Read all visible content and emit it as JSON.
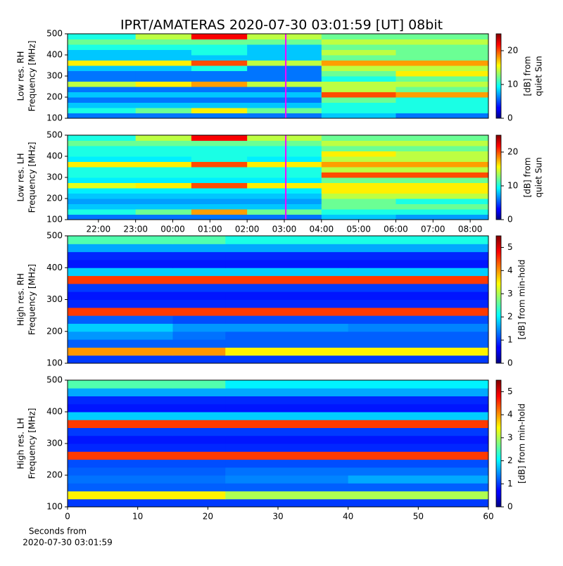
{
  "title": "IPRT/AMATERAS 2020-07-30 03:01:59 [UT]   08bit",
  "chart_data": [
    {
      "type": "heatmap",
      "ylabel": [
        "Low res. RH",
        "Frequency [MHz]"
      ],
      "xlim": [
        21.17,
        32.49
      ],
      "ylim": [
        100,
        500
      ],
      "yticks": [
        100,
        200,
        300,
        400,
        500
      ],
      "x_edges": [
        21.17,
        23,
        24.5,
        26,
        28,
        30,
        32.49
      ],
      "y_edges": [
        100,
        125,
        150,
        175,
        200,
        225,
        250,
        275,
        300,
        325,
        350,
        375,
        400,
        425,
        450,
        475,
        500
      ],
      "values": [
        [
          6,
          6,
          6,
          6,
          8,
          6
        ],
        [
          10,
          12,
          16,
          12,
          10,
          10
        ],
        [
          8,
          8,
          8,
          8,
          10,
          10
        ],
        [
          6,
          6,
          6,
          6,
          12,
          10
        ],
        [
          8,
          8,
          8,
          8,
          20,
          18
        ],
        [
          6,
          6,
          6,
          6,
          14,
          12
        ],
        [
          14,
          16,
          18,
          14,
          14,
          14
        ],
        [
          6,
          6,
          6,
          6,
          10,
          12
        ],
        [
          6,
          6,
          6,
          6,
          12,
          16
        ],
        [
          8,
          8,
          10,
          6,
          14,
          14
        ],
        [
          16,
          16,
          20,
          14,
          18,
          18
        ],
        [
          8,
          8,
          8,
          8,
          12,
          12
        ],
        [
          8,
          8,
          10,
          8,
          14,
          12
        ],
        [
          10,
          10,
          10,
          8,
          12,
          12
        ],
        [
          12,
          12,
          12,
          12,
          14,
          14
        ],
        [
          10,
          14,
          22,
          14,
          12,
          12
        ]
      ],
      "clim": [
        0,
        25
      ],
      "cticks": [
        0,
        10,
        20
      ],
      "colorbar_label": [
        "[dB] from",
        "quiet Sun"
      ],
      "vline": {
        "x": 27.04,
        "color": "#ff00ff"
      }
    },
    {
      "type": "heatmap",
      "ylabel": [
        "Low res. LH",
        "Frequency [MHz]"
      ],
      "xlim": [
        21.17,
        32.49
      ],
      "ylim": [
        100,
        500
      ],
      "yticks": [
        100,
        200,
        300,
        400,
        500
      ],
      "xticks": [
        {
          "value": 22,
          "label": "22:00"
        },
        {
          "value": 23,
          "label": "23:00"
        },
        {
          "value": 24,
          "label": "00:00"
        },
        {
          "value": 25,
          "label": "01:00"
        },
        {
          "value": 26,
          "label": "02:00"
        },
        {
          "value": 27,
          "label": "03:00"
        },
        {
          "value": 28,
          "label": "04:00"
        },
        {
          "value": 29,
          "label": "05:00"
        },
        {
          "value": 30,
          "label": "06:00"
        },
        {
          "value": 31,
          "label": "07:00"
        },
        {
          "value": 32,
          "label": "08:00"
        }
      ],
      "x_edges": [
        21.17,
        23,
        24.5,
        26,
        28,
        30,
        32.49
      ],
      "y_edges": [
        100,
        125,
        150,
        175,
        200,
        225,
        250,
        275,
        300,
        325,
        350,
        375,
        400,
        425,
        450,
        475,
        500
      ],
      "values": [
        [
          6,
          6,
          6,
          6,
          8,
          7
        ],
        [
          10,
          12,
          18,
          12,
          10,
          10
        ],
        [
          8,
          8,
          8,
          8,
          12,
          12
        ],
        [
          7,
          7,
          7,
          7,
          12,
          10
        ],
        [
          8,
          8,
          8,
          8,
          14,
          14
        ],
        [
          9,
          9,
          9,
          9,
          16,
          16
        ],
        [
          15,
          16,
          20,
          16,
          16,
          16
        ],
        [
          9,
          9,
          9,
          9,
          12,
          12
        ],
        [
          10,
          10,
          10,
          10,
          20,
          20
        ],
        [
          10,
          10,
          10,
          10,
          14,
          14
        ],
        [
          16,
          16,
          20,
          16,
          18,
          18
        ],
        [
          9,
          9,
          10,
          9,
          14,
          14
        ],
        [
          10,
          10,
          10,
          10,
          16,
          14
        ],
        [
          10,
          10,
          10,
          10,
          12,
          12
        ],
        [
          12,
          12,
          12,
          12,
          14,
          14
        ],
        [
          10,
          14,
          22,
          14,
          12,
          12
        ]
      ],
      "clim": [
        0,
        25
      ],
      "cticks": [
        0,
        10,
        20
      ],
      "colorbar_label": [
        "[dB] from",
        "quiet Sun"
      ],
      "vline": {
        "x": 27.04,
        "color": "#ff00ff"
      }
    },
    {
      "type": "heatmap",
      "ylabel": [
        "High res. RH",
        "Frequency [MHz]"
      ],
      "xlim": [
        0,
        60
      ],
      "ylim": [
        100,
        500
      ],
      "yticks": [
        100,
        200,
        300,
        400,
        500
      ],
      "x_edges": [
        0,
        15,
        22.5,
        40,
        60
      ],
      "y_edges": [
        100,
        125,
        150,
        175,
        200,
        225,
        250,
        275,
        300,
        325,
        350,
        375,
        400,
        425,
        450,
        475,
        500
      ],
      "values": [
        [
          1,
          1,
          1,
          1
        ],
        [
          4,
          4,
          3.5,
          3.5
        ],
        [
          1.2,
          1.2,
          1.2,
          1.2
        ],
        [
          1.5,
          1.3,
          1.2,
          1.2
        ],
        [
          1.8,
          1.5,
          1.5,
          1.4
        ],
        [
          1.2,
          1.1,
          1.1,
          1.1
        ],
        [
          4.5,
          4.5,
          4.5,
          4.5
        ],
        [
          0.9,
          0.9,
          0.9,
          0.9
        ],
        [
          0.8,
          0.8,
          0.8,
          0.8
        ],
        [
          1,
          1,
          1,
          1
        ],
        [
          4.5,
          4.5,
          4.5,
          4.5
        ],
        [
          1.8,
          1.8,
          1.8,
          1.8
        ],
        [
          0.8,
          0.8,
          0.8,
          0.8
        ],
        [
          0.9,
          0.9,
          0.9,
          0.9
        ],
        [
          1.6,
          1.6,
          1.6,
          1.6
        ],
        [
          2.5,
          2.5,
          2.2,
          2.2
        ]
      ],
      "clim": [
        0,
        5.5
      ],
      "cticks": [
        0,
        1,
        2,
        3,
        4,
        5
      ],
      "colorbar_label": [
        "[dB] from min-hold"
      ]
    },
    {
      "type": "heatmap",
      "ylabel": [
        "High res. LH",
        "Frequency [MHz]"
      ],
      "xlim": [
        0,
        60
      ],
      "ylim": [
        100,
        500
      ],
      "yticks": [
        100,
        200,
        300,
        400,
        500
      ],
      "xticks": [
        0,
        10,
        20,
        30,
        40,
        50,
        60
      ],
      "xlabel": [
        "Seconds from",
        "2020-07-30 03:01:59"
      ],
      "x_edges": [
        0,
        15,
        22.5,
        40,
        60
      ],
      "y_edges": [
        100,
        125,
        150,
        175,
        200,
        225,
        250,
        275,
        300,
        325,
        350,
        375,
        400,
        425,
        450,
        475,
        500
      ],
      "values": [
        [
          1,
          1,
          1,
          1
        ],
        [
          3.5,
          3.5,
          3,
          3
        ],
        [
          1.2,
          1.2,
          1.2,
          1.2
        ],
        [
          1.3,
          1.3,
          1.4,
          1.6
        ],
        [
          1.2,
          1.2,
          1.3,
          1.3
        ],
        [
          1.1,
          1.1,
          1.1,
          1.1
        ],
        [
          4.5,
          4.5,
          4.5,
          4.5
        ],
        [
          0.9,
          0.9,
          0.9,
          0.9
        ],
        [
          0.8,
          0.8,
          0.8,
          0.8
        ],
        [
          1,
          1,
          1,
          1
        ],
        [
          4.5,
          4.5,
          4.5,
          4.5
        ],
        [
          1.8,
          1.8,
          1.8,
          1.8
        ],
        [
          0.8,
          0.8,
          0.8,
          0.8
        ],
        [
          0.9,
          0.9,
          0.9,
          0.9
        ],
        [
          1.6,
          1.6,
          1.6,
          1.6
        ],
        [
          2.5,
          2.5,
          2,
          2
        ]
      ],
      "clim": [
        0,
        5.5
      ],
      "cticks": [
        0,
        1,
        2,
        3,
        4,
        5
      ],
      "colorbar_label": [
        "[dB] from min-hold"
      ]
    }
  ]
}
